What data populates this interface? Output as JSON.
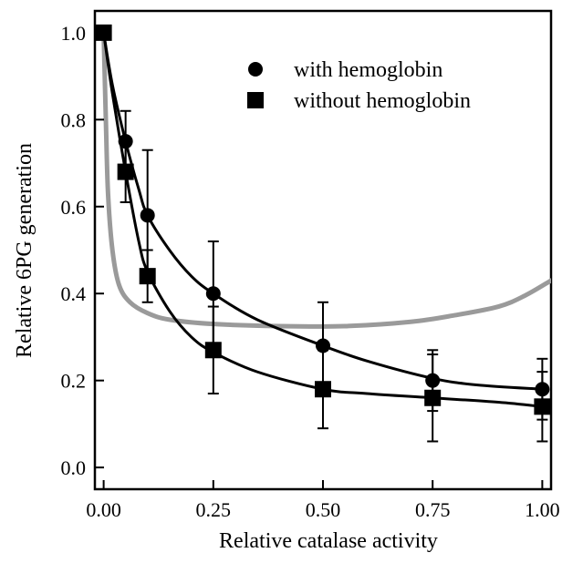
{
  "chart_data": {
    "type": "scatter",
    "title": "",
    "xlabel": "Relative catalase activity",
    "ylabel": "Relative 6PG generation",
    "xlim": [
      -0.02,
      1.02
    ],
    "ylim": [
      -0.05,
      1.05
    ],
    "xticks": [
      0.0,
      0.25,
      0.5,
      0.75,
      1.0
    ],
    "xtick_labels": [
      "0.00",
      "0.25",
      "0.50",
      "0.75",
      "1.00"
    ],
    "yticks": [
      0.0,
      0.2,
      0.4,
      0.6,
      0.8,
      1.0
    ],
    "ytick_labels": [
      "0.0",
      "0.2",
      "0.4",
      "0.6",
      "0.8",
      "1.0"
    ],
    "grid": false,
    "legend_position": "top-right",
    "series": [
      {
        "name": "with hemoglobin",
        "marker": "circle",
        "color": "#000000",
        "points": [
          {
            "x": 0.0,
            "y": 1.0,
            "err": 0.0
          },
          {
            "x": 0.05,
            "y": 0.75,
            "err": 0.07
          },
          {
            "x": 0.1,
            "y": 0.58,
            "err": 0.15
          },
          {
            "x": 0.25,
            "y": 0.4,
            "err": 0.12
          },
          {
            "x": 0.5,
            "y": 0.28,
            "err": 0.1
          },
          {
            "x": 0.75,
            "y": 0.2,
            "err": 0.07
          },
          {
            "x": 1.0,
            "y": 0.18,
            "err": 0.07
          }
        ],
        "fit_curve": [
          [
            0.0,
            1.0
          ],
          [
            0.02,
            0.88
          ],
          [
            0.05,
            0.75
          ],
          [
            0.08,
            0.64
          ],
          [
            0.1,
            0.58
          ],
          [
            0.15,
            0.5
          ],
          [
            0.2,
            0.44
          ],
          [
            0.25,
            0.4
          ],
          [
            0.35,
            0.34
          ],
          [
            0.5,
            0.28
          ],
          [
            0.6,
            0.245
          ],
          [
            0.75,
            0.205
          ],
          [
            0.85,
            0.19
          ],
          [
            1.0,
            0.18
          ]
        ]
      },
      {
        "name": "without hemoglobin",
        "marker": "square",
        "color": "#000000",
        "points": [
          {
            "x": 0.0,
            "y": 1.0,
            "err": 0.0
          },
          {
            "x": 0.05,
            "y": 0.68,
            "err": 0.07
          },
          {
            "x": 0.1,
            "y": 0.44,
            "err": 0.06
          },
          {
            "x": 0.25,
            "y": 0.27,
            "err": 0.1
          },
          {
            "x": 0.5,
            "y": 0.18,
            "err": 0.09
          },
          {
            "x": 0.75,
            "y": 0.16,
            "err": 0.1
          },
          {
            "x": 1.0,
            "y": 0.14,
            "err": 0.08
          }
        ],
        "fit_curve": [
          [
            0.0,
            1.0
          ],
          [
            0.02,
            0.86
          ],
          [
            0.05,
            0.68
          ],
          [
            0.08,
            0.52
          ],
          [
            0.1,
            0.45
          ],
          [
            0.15,
            0.36
          ],
          [
            0.2,
            0.3
          ],
          [
            0.25,
            0.265
          ],
          [
            0.35,
            0.22
          ],
          [
            0.5,
            0.18
          ],
          [
            0.6,
            0.17
          ],
          [
            0.75,
            0.16
          ],
          [
            0.9,
            0.15
          ],
          [
            1.0,
            0.14
          ]
        ]
      },
      {
        "name": "",
        "marker": "none",
        "color": "#9a9a9a",
        "points": [],
        "fit_curve": [
          [
            0.0,
            1.0
          ],
          [
            0.005,
            0.8
          ],
          [
            0.01,
            0.63
          ],
          [
            0.02,
            0.5
          ],
          [
            0.035,
            0.42
          ],
          [
            0.06,
            0.38
          ],
          [
            0.1,
            0.355
          ],
          [
            0.15,
            0.34
          ],
          [
            0.25,
            0.33
          ],
          [
            0.4,
            0.325
          ],
          [
            0.55,
            0.325
          ],
          [
            0.7,
            0.335
          ],
          [
            0.8,
            0.35
          ],
          [
            0.9,
            0.37
          ],
          [
            0.96,
            0.395
          ],
          [
            1.02,
            0.43
          ]
        ]
      }
    ]
  }
}
